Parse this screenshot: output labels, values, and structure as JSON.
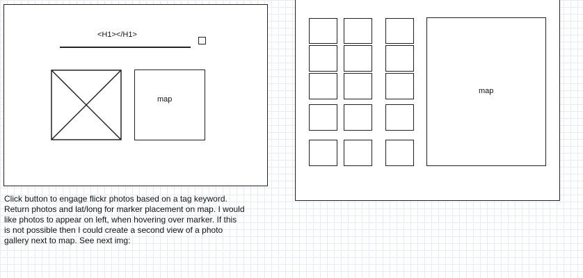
{
  "left_mockup": {
    "heading_placeholder": "<H1></H1>",
    "map_label": "map",
    "image_placeholder_icon": "image-placeholder-x-icon",
    "checkbox_icon": "checkbox-icon"
  },
  "right_mockup": {
    "map_label": "map",
    "thumbnail_rows": 5,
    "thumbnail_columns": 3
  },
  "note": {
    "lines": [
      "Click button to engage flickr photos based on a tag keyword.",
      "Return photos and lat/long for marker placement on map. I would",
      "like photos to appear on left, when hovering over marker.  If this",
      "is not possible then I could create a second view of a photo",
      "gallery next to map.  See next img:"
    ]
  }
}
